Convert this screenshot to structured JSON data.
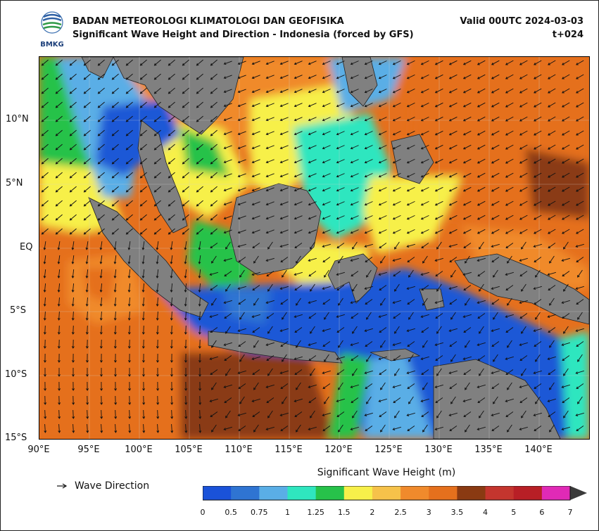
{
  "header": {
    "org_logo_text": "BMKG",
    "agency": "BADAN METEOROLOGI KLIMATOLOGI DAN GEOFISIKA",
    "product": "Significant Wave Height and Direction - Indonesia (forced by GFS)",
    "valid": "Valid 00UTC 2024-03-03",
    "lead": "t+024"
  },
  "axes": {
    "lat_labels": [
      "10°N",
      "5°N",
      "EQ",
      "5°S",
      "10°S",
      "15°S"
    ],
    "lon_labels": [
      "90°E",
      "95°E",
      "100°E",
      "105°E",
      "110°E",
      "115°E",
      "120°E",
      "125°E",
      "130°E",
      "135°E",
      "140°E"
    ],
    "lon_range": [
      90,
      145
    ],
    "lat_range": [
      -15,
      15
    ]
  },
  "legend": {
    "direction_label": "Wave Direction",
    "colorbar_title": "Significant Wave Height (m)",
    "ticks": [
      "0",
      "0.5",
      "0.75",
      "1",
      "1.25",
      "1.5",
      "2",
      "2.5",
      "3",
      "3.5",
      "4",
      "5",
      "6",
      "7"
    ],
    "colors": [
      "#1a52d9",
      "#2f74d2",
      "#5aaee6",
      "#2fe6bf",
      "#27c24a",
      "#f7f04a",
      "#f6c24a",
      "#f08a2c",
      "#e5701d",
      "#8a3a12",
      "#c4352e",
      "#b81f26",
      "#e02ab6",
      "#b23bb5"
    ],
    "extend_color": "#3a3a3a"
  },
  "map_colors": {
    "land": "#808080",
    "ocean_low": "#1f58d6",
    "ocean_mid": "#5aaee6",
    "teal": "#2fe6bf",
    "green": "#27c24a",
    "yellow": "#f7f04a",
    "orange": "#f08a2c",
    "dark_orange": "#e5701d",
    "brown": "#8a3a12"
  }
}
